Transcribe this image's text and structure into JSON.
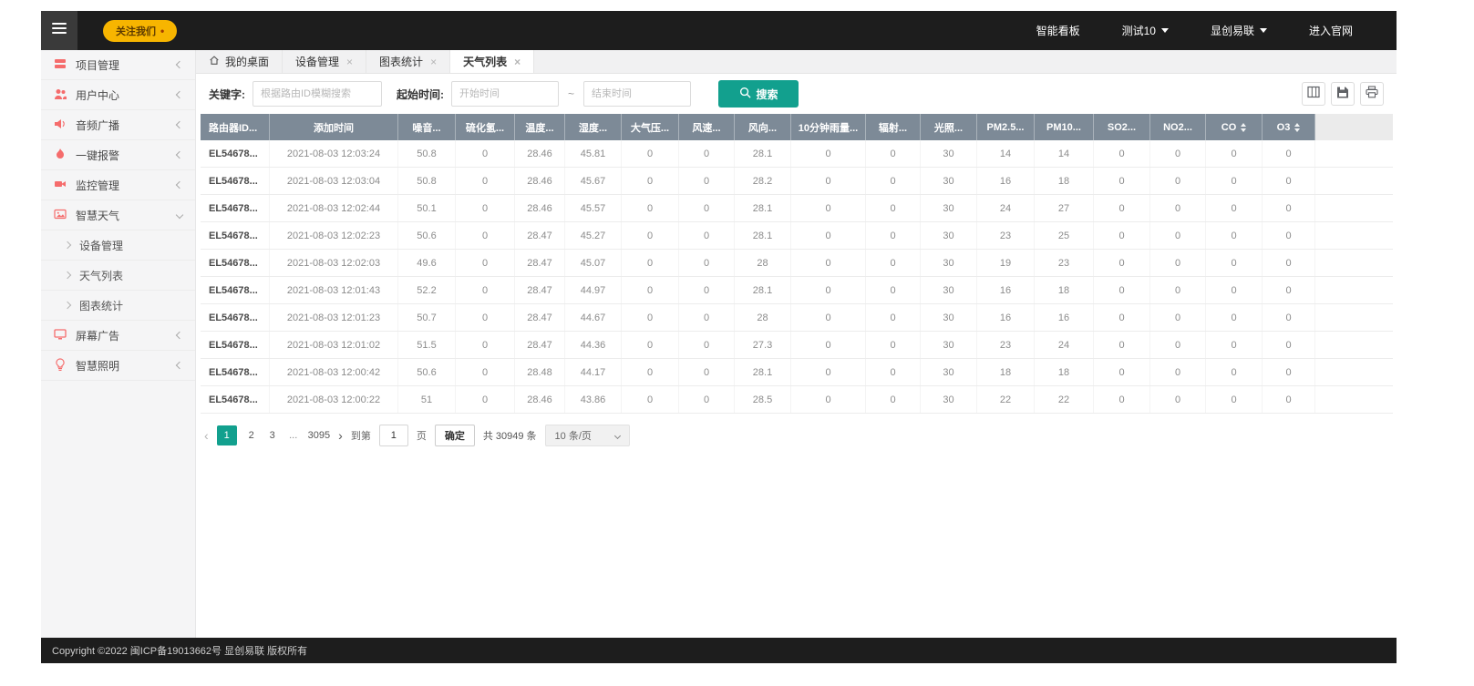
{
  "topbar": {
    "follow_label": "关注我们",
    "follow_dot": "•",
    "menu": [
      {
        "key": "smart-dashboard",
        "label": "智能看板",
        "caret": false
      },
      {
        "key": "test10-dropdown",
        "label": "测试10",
        "caret": true
      },
      {
        "key": "brand-dropdown",
        "label": "显创易联",
        "caret": true
      },
      {
        "key": "official-site",
        "label": "进入官网",
        "caret": false
      }
    ]
  },
  "sidebar": {
    "items": [
      {
        "key": "project-management",
        "label": "项目管理",
        "icon": "stack-icon",
        "state": "collapsed"
      },
      {
        "key": "user-center",
        "label": "用户中心",
        "icon": "users-icon",
        "state": "collapsed"
      },
      {
        "key": "audio-broadcast",
        "label": "音频广播",
        "icon": "speaker-icon",
        "state": "collapsed"
      },
      {
        "key": "one-key-alarm",
        "label": "一键报警",
        "icon": "flame-icon",
        "state": "collapsed"
      },
      {
        "key": "monitoring-management",
        "label": "监控管理",
        "icon": "camera-icon",
        "state": "collapsed"
      },
      {
        "key": "smart-weather",
        "label": "智慧天气",
        "icon": "image-icon",
        "state": "expanded",
        "children": [
          {
            "key": "device-management",
            "label": "设备管理"
          },
          {
            "key": "weather-list",
            "label": "天气列表"
          },
          {
            "key": "chart-statistics",
            "label": "图表统计"
          }
        ]
      },
      {
        "key": "screen-ads",
        "label": "屏幕广告",
        "icon": "monitor-icon",
        "state": "collapsed"
      },
      {
        "key": "smart-lighting",
        "label": "智慧照明",
        "icon": "bulb-icon",
        "state": "collapsed"
      }
    ]
  },
  "tabs": [
    {
      "key": "my-desktop",
      "label": "我的桌面",
      "icon": "home-icon",
      "closable": false,
      "active": false
    },
    {
      "key": "device-management",
      "label": "设备管理",
      "closable": true,
      "active": false
    },
    {
      "key": "chart-statistics",
      "label": "图表统计",
      "closable": true,
      "active": false
    },
    {
      "key": "weather-list",
      "label": "天气列表",
      "closable": true,
      "active": true
    }
  ],
  "filters": {
    "keyword_label": "关键字:",
    "keyword_placeholder": "根据路由ID模糊搜索",
    "time_label": "起始时间:",
    "start_placeholder": "开始时间",
    "range_separator": "~",
    "end_placeholder": "结束时间",
    "search_button": "搜索"
  },
  "toolbar": {
    "buttons": [
      "columns-icon",
      "export-icon",
      "print-icon"
    ]
  },
  "table": {
    "columns": [
      {
        "label": "路由器ID...",
        "sortable": false
      },
      {
        "label": "添加时间",
        "sortable": false
      },
      {
        "label": "噪音...",
        "sortable": false
      },
      {
        "label": "硫化氢...",
        "sortable": false
      },
      {
        "label": "温度...",
        "sortable": false
      },
      {
        "label": "湿度...",
        "sortable": false
      },
      {
        "label": "大气压...",
        "sortable": false
      },
      {
        "label": "风速...",
        "sortable": false
      },
      {
        "label": "风向...",
        "sortable": false
      },
      {
        "label": "10分钟雨量...",
        "sortable": false
      },
      {
        "label": "辐射...",
        "sortable": false
      },
      {
        "label": "光照...",
        "sortable": false
      },
      {
        "label": "PM2.5...",
        "sortable": false
      },
      {
        "label": "PM10...",
        "sortable": false
      },
      {
        "label": "SO2...",
        "sortable": false
      },
      {
        "label": "NO2...",
        "sortable": false
      },
      {
        "label": "CO",
        "sortable": true
      },
      {
        "label": "O3",
        "sortable": true
      }
    ],
    "rows": [
      [
        "EL54678...",
        "2021-08-03 12:03:24",
        "50.8",
        "0",
        "28.46",
        "45.81",
        "0",
        "0",
        "28.1",
        "0",
        "0",
        "30",
        "14",
        "14",
        "0",
        "0",
        "0",
        "0"
      ],
      [
        "EL54678...",
        "2021-08-03 12:03:04",
        "50.8",
        "0",
        "28.46",
        "45.67",
        "0",
        "0",
        "28.2",
        "0",
        "0",
        "30",
        "16",
        "18",
        "0",
        "0",
        "0",
        "0"
      ],
      [
        "EL54678...",
        "2021-08-03 12:02:44",
        "50.1",
        "0",
        "28.46",
        "45.57",
        "0",
        "0",
        "28.1",
        "0",
        "0",
        "30",
        "24",
        "27",
        "0",
        "0",
        "0",
        "0"
      ],
      [
        "EL54678...",
        "2021-08-03 12:02:23",
        "50.6",
        "0",
        "28.47",
        "45.27",
        "0",
        "0",
        "28.1",
        "0",
        "0",
        "30",
        "23",
        "25",
        "0",
        "0",
        "0",
        "0"
      ],
      [
        "EL54678...",
        "2021-08-03 12:02:03",
        "49.6",
        "0",
        "28.47",
        "45.07",
        "0",
        "0",
        "28",
        "0",
        "0",
        "30",
        "19",
        "23",
        "0",
        "0",
        "0",
        "0"
      ],
      [
        "EL54678...",
        "2021-08-03 12:01:43",
        "52.2",
        "0",
        "28.47",
        "44.97",
        "0",
        "0",
        "28.1",
        "0",
        "0",
        "30",
        "16",
        "18",
        "0",
        "0",
        "0",
        "0"
      ],
      [
        "EL54678...",
        "2021-08-03 12:01:23",
        "50.7",
        "0",
        "28.47",
        "44.67",
        "0",
        "0",
        "28",
        "0",
        "0",
        "30",
        "16",
        "16",
        "0",
        "0",
        "0",
        "0"
      ],
      [
        "EL54678...",
        "2021-08-03 12:01:02",
        "51.5",
        "0",
        "28.47",
        "44.36",
        "0",
        "0",
        "27.3",
        "0",
        "0",
        "30",
        "23",
        "24",
        "0",
        "0",
        "0",
        "0"
      ],
      [
        "EL54678...",
        "2021-08-03 12:00:42",
        "50.6",
        "0",
        "28.48",
        "44.17",
        "0",
        "0",
        "28.1",
        "0",
        "0",
        "30",
        "18",
        "18",
        "0",
        "0",
        "0",
        "0"
      ],
      [
        "EL54678...",
        "2021-08-03 12:00:22",
        "51",
        "0",
        "28.46",
        "43.86",
        "0",
        "0",
        "28.5",
        "0",
        "0",
        "30",
        "22",
        "22",
        "0",
        "0",
        "0",
        "0"
      ]
    ]
  },
  "pagination": {
    "prev": "‹",
    "pages": [
      "1",
      "2",
      "3",
      "...",
      "3095"
    ],
    "active_page": "1",
    "next": "›",
    "goto_label": "到第",
    "goto_value": "1",
    "page_unit": "页",
    "confirm": "确定",
    "total": "共 30949 条",
    "page_size": "10 条/页"
  },
  "footer": {
    "copyright": "Copyright ©2022 闽ICP备19013662号 显创易联 版权所有"
  },
  "colors": {
    "accent": "#12a08e",
    "table_header_bg": "#7d8a97",
    "sidebar_icon": "#f56c6c",
    "topbar_bg": "#1d1d1d",
    "follow_yellow": "#f7b500"
  }
}
